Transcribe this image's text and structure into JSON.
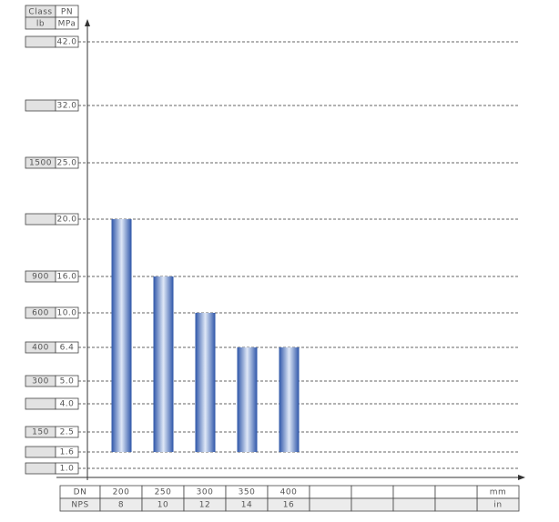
{
  "chart_data": {
    "type": "bar",
    "class_header": "Class",
    "pn_header": "PN",
    "class_unit": "lb",
    "pn_unit": "MPa",
    "yticks": [
      {
        "value": 1.0,
        "label": "1.0"
      },
      1.6,
      2.5,
      {
        "value": 4.0,
        "label": "4.0"
      },
      {
        "value": 5.0,
        "label": "5.0"
      },
      6.4,
      {
        "value": 10.0,
        "label": "10.0"
      },
      {
        "value": 16.0,
        "label": "16.0"
      },
      {
        "value": 20.0,
        "label": "20.0"
      },
      {
        "value": 25.0,
        "label": "25.0"
      },
      {
        "value": 32.0,
        "label": "32.0"
      },
      {
        "value": 42.0,
        "label": "42.0"
      }
    ],
    "class_labels": [
      null,
      null,
      150,
      null,
      300,
      400,
      600,
      900,
      null,
      1500,
      null,
      null
    ],
    "dn_header": "DN",
    "nps_header": "NPS",
    "dn_unit": "mm",
    "nps_unit": "in",
    "categories": [
      200,
      250,
      300,
      350,
      400,
      null,
      null,
      null,
      null
    ],
    "nps": [
      8,
      10,
      12,
      14,
      16,
      null,
      null,
      null,
      null
    ],
    "values": [
      20.0,
      16.0,
      10.0,
      6.4,
      6.4,
      null,
      null,
      null,
      null
    ],
    "base": 1.6,
    "color": "#2d55a8",
    "grid": true
  }
}
